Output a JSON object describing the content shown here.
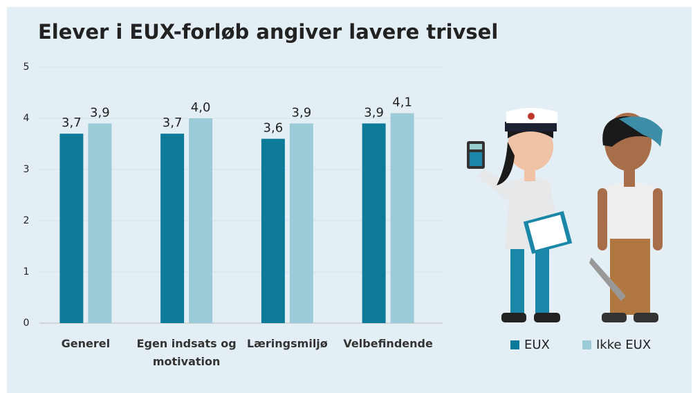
{
  "chart_data": {
    "type": "bar",
    "title": "Elever i EUX-forløb angiver lavere trivsel",
    "categories": [
      "Generel",
      "Egen indsats og motivation",
      "Læringsmiljø",
      "Velbefindende"
    ],
    "series": [
      {
        "name": "EUX",
        "color": "#0e7a99",
        "values": [
          3.7,
          3.7,
          3.6,
          3.9
        ],
        "value_labels": [
          "3,7",
          "3,7",
          "3,6",
          "3,9"
        ]
      },
      {
        "name": "Ikke EUX",
        "color": "#9ccbd8",
        "values": [
          3.9,
          4.0,
          3.9,
          4.1
        ],
        "value_labels": [
          "3,9",
          "4,0",
          "3,9",
          "4,1"
        ]
      }
    ],
    "ylim": [
      0,
      5
    ],
    "yticks": [
      0,
      1,
      2,
      3,
      4,
      5
    ],
    "grid": true
  }
}
